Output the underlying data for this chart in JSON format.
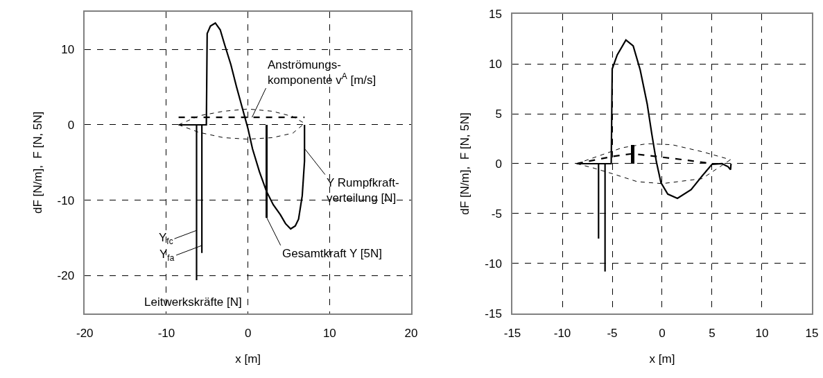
{
  "chart_data": [
    {
      "type": "line",
      "xlabel": "x [m]",
      "ylabel": "dF [N/m],  F [N, 5N]",
      "xlim": [
        -20,
        20
      ],
      "ylim": [
        -25,
        15
      ],
      "xticks": [
        -20,
        -10,
        0,
        10,
        20
      ],
      "yticks": [
        -20,
        -10,
        0,
        10
      ],
      "grid": true,
      "marker": "none",
      "series": [
        {
          "color": "#000000",
          "line_style": "solid",
          "x": [
            -8.5,
            -5.1,
            -5.0,
            -4.6,
            -4.0,
            -3.4,
            -2.85,
            -2.1,
            -1.42,
            -0.71,
            0,
            0.56,
            1.4,
            2.26,
            3.1,
            3.96,
            4.6,
            5.23,
            5.8,
            6.2,
            6.65,
            6.93,
            6.93
          ],
          "values": [
            0,
            0,
            12.1,
            13.1,
            13.5,
            12.6,
            10.6,
            8.0,
            5.1,
            2.3,
            -0.5,
            -3.2,
            -6.2,
            -8.8,
            -10.6,
            -11.9,
            -13.1,
            -13.8,
            -13.4,
            -12.5,
            -9.4,
            -4.8,
            0
          ]
        },
        {
          "color": "#000000",
          "line_style": "dashed",
          "x": [
            -8.5,
            6.93
          ],
          "values": [
            1.0,
            1.0
          ]
        },
        {
          "color": "#000000",
          "line_style": "dashed",
          "x": [
            -8.5,
            -6,
            -3,
            0,
            3,
            5.5,
            6.93
          ],
          "values": [
            0,
            1.2,
            1.8,
            2.1,
            1.8,
            1.1,
            0.2
          ]
        },
        {
          "color": "#000000",
          "line_style": "dashed",
          "x": [
            -8.5,
            -6,
            -3,
            0,
            3,
            5.5,
            6.93
          ],
          "values": [
            0,
            -1.0,
            -1.7,
            -1.9,
            -1.7,
            -1.1,
            0.2
          ]
        },
        {
          "type": "bar",
          "color": "#000000",
          "x": [
            2.3
          ],
          "values": [
            -12.3
          ]
        },
        {
          "color": "#000000",
          "line_style": "solid",
          "x": [
            -6.3,
            -6.3
          ],
          "values": [
            0,
            -20.6
          ]
        },
        {
          "color": "#000000",
          "line_style": "solid",
          "x": [
            -5.65,
            -5.65
          ],
          "values": [
            0,
            -17.0
          ]
        }
      ],
      "annotations": [
        {
          "text": "Anströmungs-\nkomponente v$^{A}$ [m/s]",
          "x": 0.5,
          "y": 1.0
        },
        {
          "text": "Y Rumpfkraft-\nverteilung [N]",
          "x": 6.9,
          "y": -3.1
        },
        {
          "text": "Gesamtkraft Y [5N]",
          "x": 2.3,
          "y": -12.3
        },
        {
          "text": "Y$_{fc}$",
          "x": -6.3,
          "y": -14.0
        },
        {
          "text": "Y$_{fa}$",
          "x": -5.65,
          "y": -16.0
        },
        {
          "text": "Leitwerkskräfte [N]",
          "x": -6.3,
          "y": -20.6
        }
      ]
    },
    {
      "type": "line",
      "xlabel": "x [m]",
      "ylabel": "dF [N/m],  F [N, 5N]",
      "xlim": [
        -15,
        15
      ],
      "ylim": [
        -15,
        15
      ],
      "xticks": [
        -15,
        -10,
        -5,
        0,
        5,
        10,
        15
      ],
      "yticks": [
        -15,
        -10,
        -5,
        0,
        5,
        10,
        15
      ],
      "grid": true,
      "marker": "none",
      "series": [
        {
          "color": "#000000",
          "line_style": "solid",
          "x": [
            -8.56,
            -5.1,
            -5.0,
            -4.5,
            -3.63,
            -2.9,
            -2.2,
            -1.5,
            -1.04,
            -0.58,
            -0.12,
            0.56,
            1.53,
            2.9,
            4.03,
            5.0,
            6.0,
            6.6,
            6.85,
            6.9
          ],
          "values": [
            0,
            0,
            9.5,
            10.9,
            12.4,
            11.8,
            9.4,
            6.0,
            3.0,
            0.2,
            -1.9,
            -3.05,
            -3.47,
            -2.6,
            -1.2,
            -0.06,
            0,
            -0.3,
            -0.6,
            0
          ]
        },
        {
          "color": "#000000",
          "line_style": "dashed",
          "x": [
            -8.56,
            -5.0,
            -2.96,
            0,
            2.5,
            5.0
          ],
          "values": [
            0,
            0.72,
            1.0,
            0.65,
            0.35,
            0
          ]
        },
        {
          "color": "#000000",
          "line_style": "dashed",
          "x": [
            -8.56,
            -6,
            -4,
            -1.5,
            1,
            4,
            6.85
          ],
          "values": [
            0,
            0.9,
            1.6,
            2.0,
            1.9,
            1.2,
            0.4
          ]
        },
        {
          "color": "#000000",
          "line_style": "dashed",
          "x": [
            -8.56,
            -7,
            -5,
            -2.5,
            0,
            4,
            6.85
          ],
          "values": [
            0,
            -0.4,
            -1.0,
            -1.8,
            -2.0,
            -1.5,
            0.4
          ]
        },
        {
          "type": "bar",
          "color": "#000000",
          "x": [
            -2.96
          ],
          "values": [
            1.85
          ]
        },
        {
          "color": "#000000",
          "line_style": "solid",
          "x": [
            -6.37,
            -6.37
          ],
          "values": [
            0,
            -7.5
          ]
        },
        {
          "color": "#000000",
          "line_style": "solid",
          "x": [
            -5.72,
            -5.72
          ],
          "values": [
            0,
            -10.8
          ]
        }
      ]
    }
  ]
}
